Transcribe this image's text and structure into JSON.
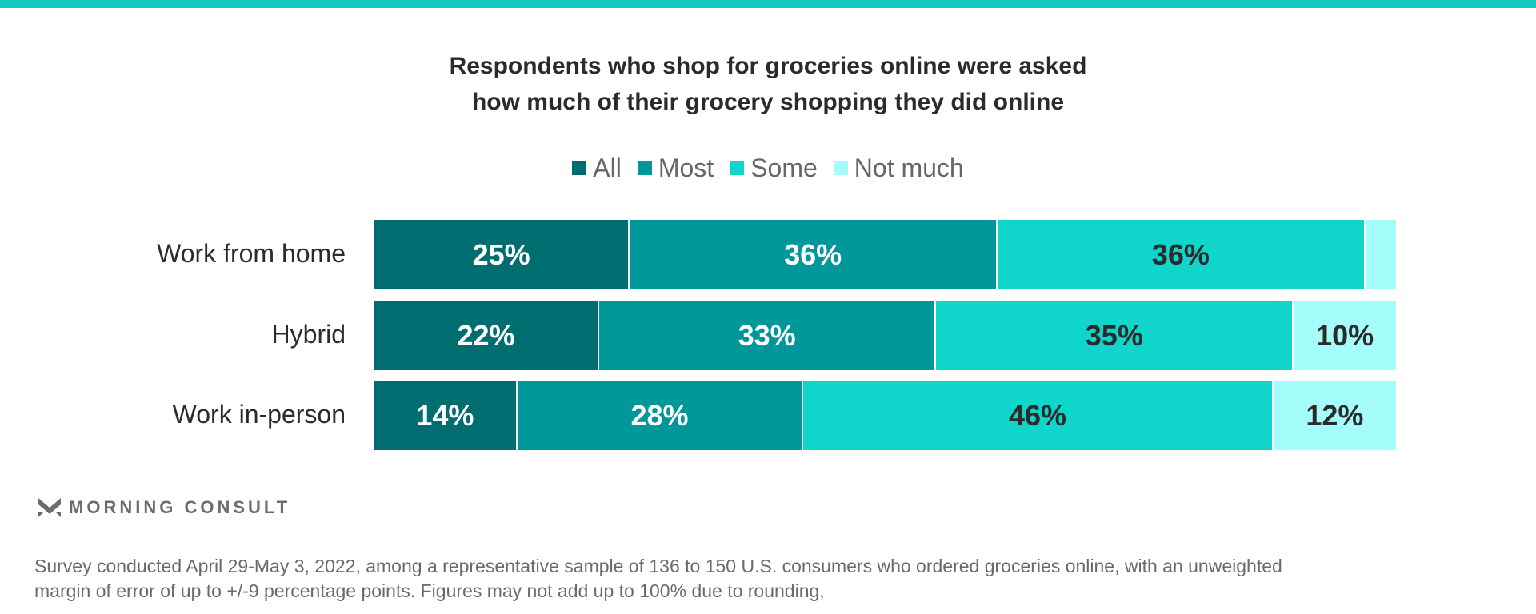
{
  "chart_data": {
    "type": "bar",
    "orientation": "horizontal",
    "stacked": true,
    "title": "Respondents who shop for groceries online were asked how much of their grocery shopping they did online",
    "title_lines": [
      "Respondents who shop for groceries online were asked",
      "how much of their grocery shopping they did online"
    ],
    "categories": [
      "Work from home",
      "Hybrid",
      "Work in-person"
    ],
    "series": [
      {
        "name": "All",
        "values": [
          25,
          22,
          14
        ],
        "color": "#006e70",
        "label_color": "#ffffff"
      },
      {
        "name": "Most",
        "values": [
          36,
          33,
          28
        ],
        "color": "#00979a",
        "label_color": "#ffffff"
      },
      {
        "name": "Some",
        "values": [
          36,
          35,
          46
        ],
        "color": "#0fd5cb",
        "label_color": "#2b2b2b"
      },
      {
        "name": "Not much",
        "values": [
          3,
          10,
          12
        ],
        "color": "#a4fdfb",
        "label_color": "#2b2b2b"
      }
    ],
    "data_labels": [
      [
        "25%",
        "22%",
        "14%"
      ],
      [
        "36%",
        "33%",
        "28%"
      ],
      [
        "36%",
        "35%",
        "46%"
      ],
      [
        "",
        "10%",
        "12%"
      ]
    ],
    "xlim": [
      0,
      100
    ],
    "legend_position": "top",
    "grid": false
  },
  "brand": {
    "name": "MORNING CONSULT",
    "accent": "#13c9c4"
  },
  "footnote": {
    "lines": [
      "Survey conducted April 29-May 3, 2022, among a representative sample of 136 to 150 U.S. consumers who ordered groceries online, with an unweighted",
      "margin of error of up to +/-9 percentage points. Figures may not add up to 100% due to rounding,"
    ]
  }
}
